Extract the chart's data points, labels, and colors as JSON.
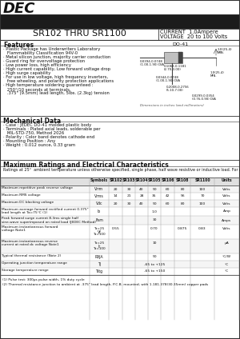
{
  "title_part": "SR102 THRU SR1100",
  "current_label": "CURRENT  1.0Ampere",
  "voltage_label": "VOLTAGE  20 to 100 Volts",
  "dec_logo": "DEC",
  "features_title": "Features",
  "features": [
    "· Plastic Package has Underwriters Laboratory",
    "   Flammability Classification 94V-0",
    "· Metal silicon junction, majority carrier conduction",
    "· Guard ring for overvoltage protection",
    "· Low power loss, high efficiency",
    "· High current capability, Low forward voltage drop",
    "· High surge capability",
    "· For use in low voltage, high frequency inverters,",
    "   free wheeling, and polarity protection applications",
    "· High temperature soldering guaranteed :",
    "   250°/10 seconds at terminals,",
    "   .375\" (9.5mm) lead length, 5lbs. (2.3kg) tension"
  ],
  "mech_title": "Mechanical Data",
  "mech_data": [
    "· Case : JEDEC DO-41 molded plastic body",
    "· Terminals : Plated axial leads, solderable per",
    "   MIL-STD-750, Method 2026",
    "· Polarity : Color band denotes cathode end",
    "· Mounting Position : Any",
    "· Weight : 0.012 ounce, 0.33 gram"
  ],
  "ratings_title": "Maximum Ratings and Electrical Characteristics",
  "ratings_note": "Ratings at 25°  ambient temperature unless otherwise specified, single phase, half wave resistive or inductive load. For capacitive load, derate by 20%.",
  "table_col_labels": [
    "",
    "Symbols",
    "SR102",
    "SR103",
    "SR104",
    "SR105",
    "SR106",
    "SR108",
    "SR1100",
    "Units"
  ],
  "footer_notes": [
    "(1) Pulse test: 300μs pulse width, 1% duty cycle",
    "(2) Thermal resistance junction to ambient at .375\" lead length, P.C.B. mounted, with 1.181.378(30.35mm) copper pads"
  ],
  "do41_label": "DO-41",
  "dim_body_w": "0.1063-0.1181\n(2.70-3.00)",
  "dim_lead_dia": "0.0394-0.0748\n(1.00-1.90) DIA",
  "dim_lead_len": "1.0(25.4)\nMIN.",
  "dim_lead_dia2": "0.0299-0.0354\n(0.76-0.90) DIA",
  "dim_body_len": "0.2008-0.2756\n(5.10-7.00)",
  "dim_note": "Dimensions in inches (and millimeters)",
  "bg_color": "#ffffff",
  "header_bg": "#1c1c1c",
  "border_color": "#333333"
}
